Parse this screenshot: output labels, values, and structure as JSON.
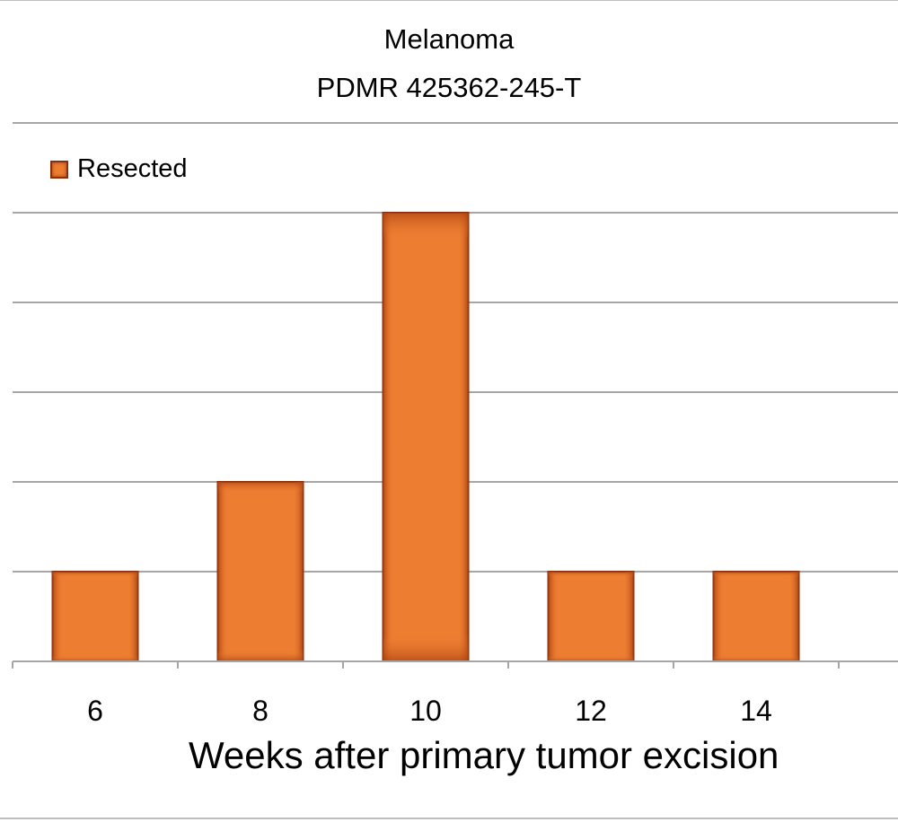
{
  "chart_data": {
    "type": "bar",
    "title": "Melanoma",
    "subtitle": "PDMR 425362-245-T",
    "xlabel": "Weeks after primary tumor excision",
    "ylabel": "",
    "categories": [
      "6",
      "8",
      "10",
      "12",
      "14",
      ""
    ],
    "series": [
      {
        "name": "Resected",
        "values": [
          1,
          2,
          5,
          1,
          1,
          0
        ],
        "color": "#ed7d31",
        "border_color": "#8a2e0b"
      }
    ],
    "ylim": [
      0,
      6
    ],
    "gridlines": true,
    "legend_position": "top-left"
  }
}
